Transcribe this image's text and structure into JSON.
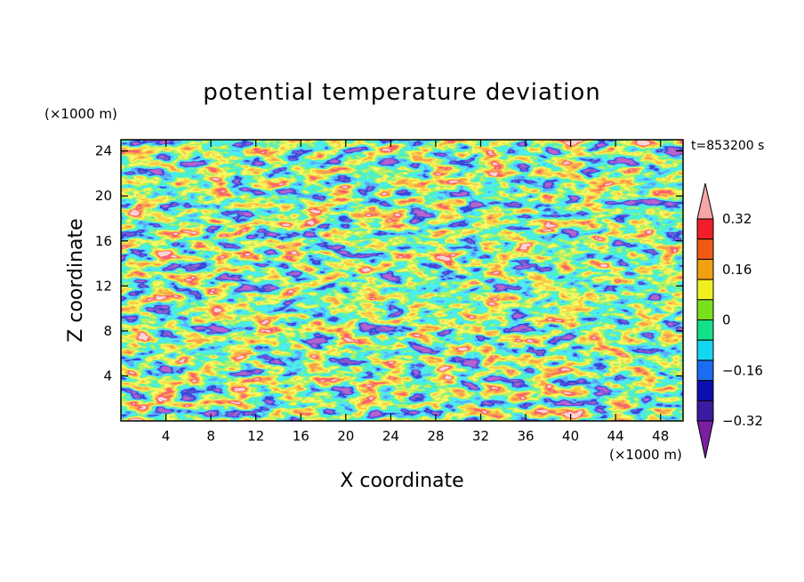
{
  "chart_data": {
    "type": "heatmap",
    "title": "potential temperature deviation",
    "xlabel": "X coordinate",
    "ylabel": "Z coordinate",
    "x_unit": "(×1000 m)",
    "y_unit": "(×1000 m)",
    "time_label": "t=853200 s",
    "xlim": [
      0,
      50
    ],
    "ylim": [
      0,
      25
    ],
    "x_ticks": [
      4,
      8,
      12,
      16,
      20,
      24,
      28,
      32,
      36,
      40,
      44,
      48
    ],
    "y_ticks": [
      4,
      8,
      12,
      16,
      20,
      24
    ],
    "colorbar": {
      "levels": [
        -0.4,
        -0.32,
        -0.24,
        -0.16,
        -0.08,
        0,
        0.08,
        0.16,
        0.24,
        0.32,
        0.4
      ],
      "labels": [
        "0.32",
        "0.16",
        "0",
        "−0.16",
        "−0.32"
      ],
      "label_values": [
        0.32,
        0.16,
        0,
        -0.16,
        -0.32
      ],
      "colors": [
        "#7a1fa0",
        "#3a1aa0",
        "#0a10b0",
        "#1a6cf0",
        "#14d6f0",
        "#14e08a",
        "#7ae01e",
        "#f0f020",
        "#f0a010",
        "#f05a14",
        "#f01e28",
        "#f5a6a6"
      ],
      "extend": "both"
    }
  }
}
